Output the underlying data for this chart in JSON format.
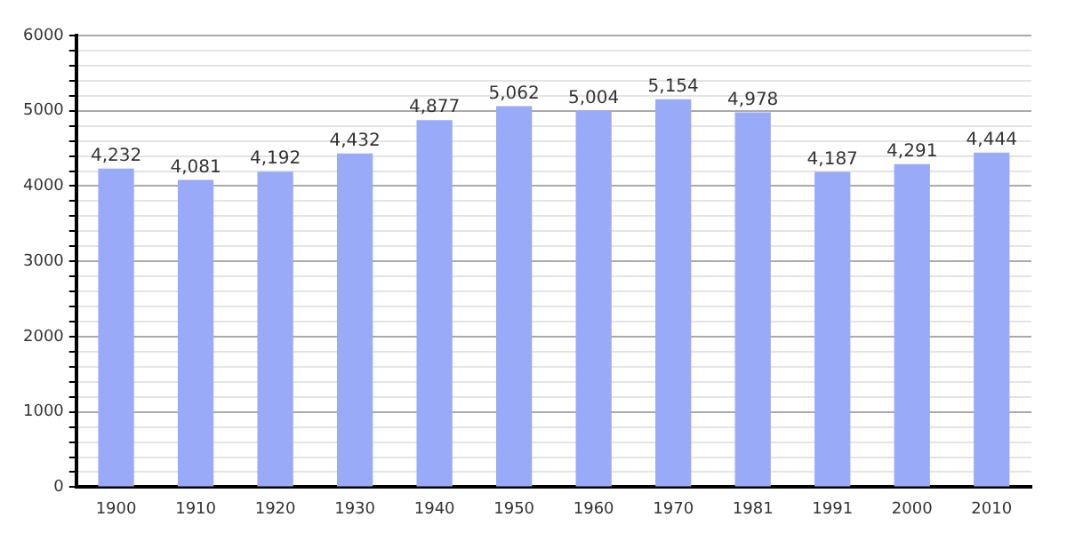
{
  "chart_data": {
    "type": "bar",
    "categories": [
      "1900",
      "1910",
      "1920",
      "1930",
      "1940",
      "1950",
      "1960",
      "1970",
      "1981",
      "1991",
      "2000",
      "2010"
    ],
    "values": [
      4232,
      4081,
      4192,
      4432,
      4877,
      5062,
      5004,
      5154,
      4978,
      4187,
      4291,
      4444
    ],
    "value_labels": [
      "4,232",
      "4,081",
      "4,192",
      "4,432",
      "4,877",
      "5,062",
      "5,004",
      "5,154",
      "4,978",
      "4,187",
      "4,291",
      "4,444"
    ],
    "color": "#99aaf8",
    "ylim": [
      0,
      6000
    ],
    "yticks": [
      0,
      {
        "value": 200,
        "label": null
      },
      {
        "value": 400,
        "label": null
      },
      {
        "value": 600,
        "label": null
      },
      {
        "value": 800,
        "label": null
      },
      1000,
      {
        "value": 1200,
        "label": null
      },
      {
        "value": 1400,
        "label": null
      },
      {
        "value": 1600,
        "label": null
      },
      {
        "value": 1800,
        "label": null
      },
      2000,
      {
        "value": 2200,
        "label": null
      },
      {
        "value": 2400,
        "label": null
      },
      {
        "value": 2600,
        "label": null
      },
      {
        "value": 2800,
        "label": null
      },
      3000,
      {
        "value": 3200,
        "label": null
      },
      {
        "value": 3400,
        "label": null
      },
      {
        "value": 3600,
        "label": null
      },
      {
        "value": 3800,
        "label": null
      },
      4000,
      {
        "value": 4200,
        "label": null
      },
      {
        "value": 4400,
        "label": null
      },
      {
        "value": 4600,
        "label": null
      },
      {
        "value": 4800,
        "label": null
      },
      5000,
      {
        "value": 5200,
        "label": null
      },
      {
        "value": 5400,
        "label": null
      },
      {
        "value": 5600,
        "label": null
      },
      {
        "value": 5800,
        "label": null
      },
      6000
    ],
    "grid": "y"
  }
}
